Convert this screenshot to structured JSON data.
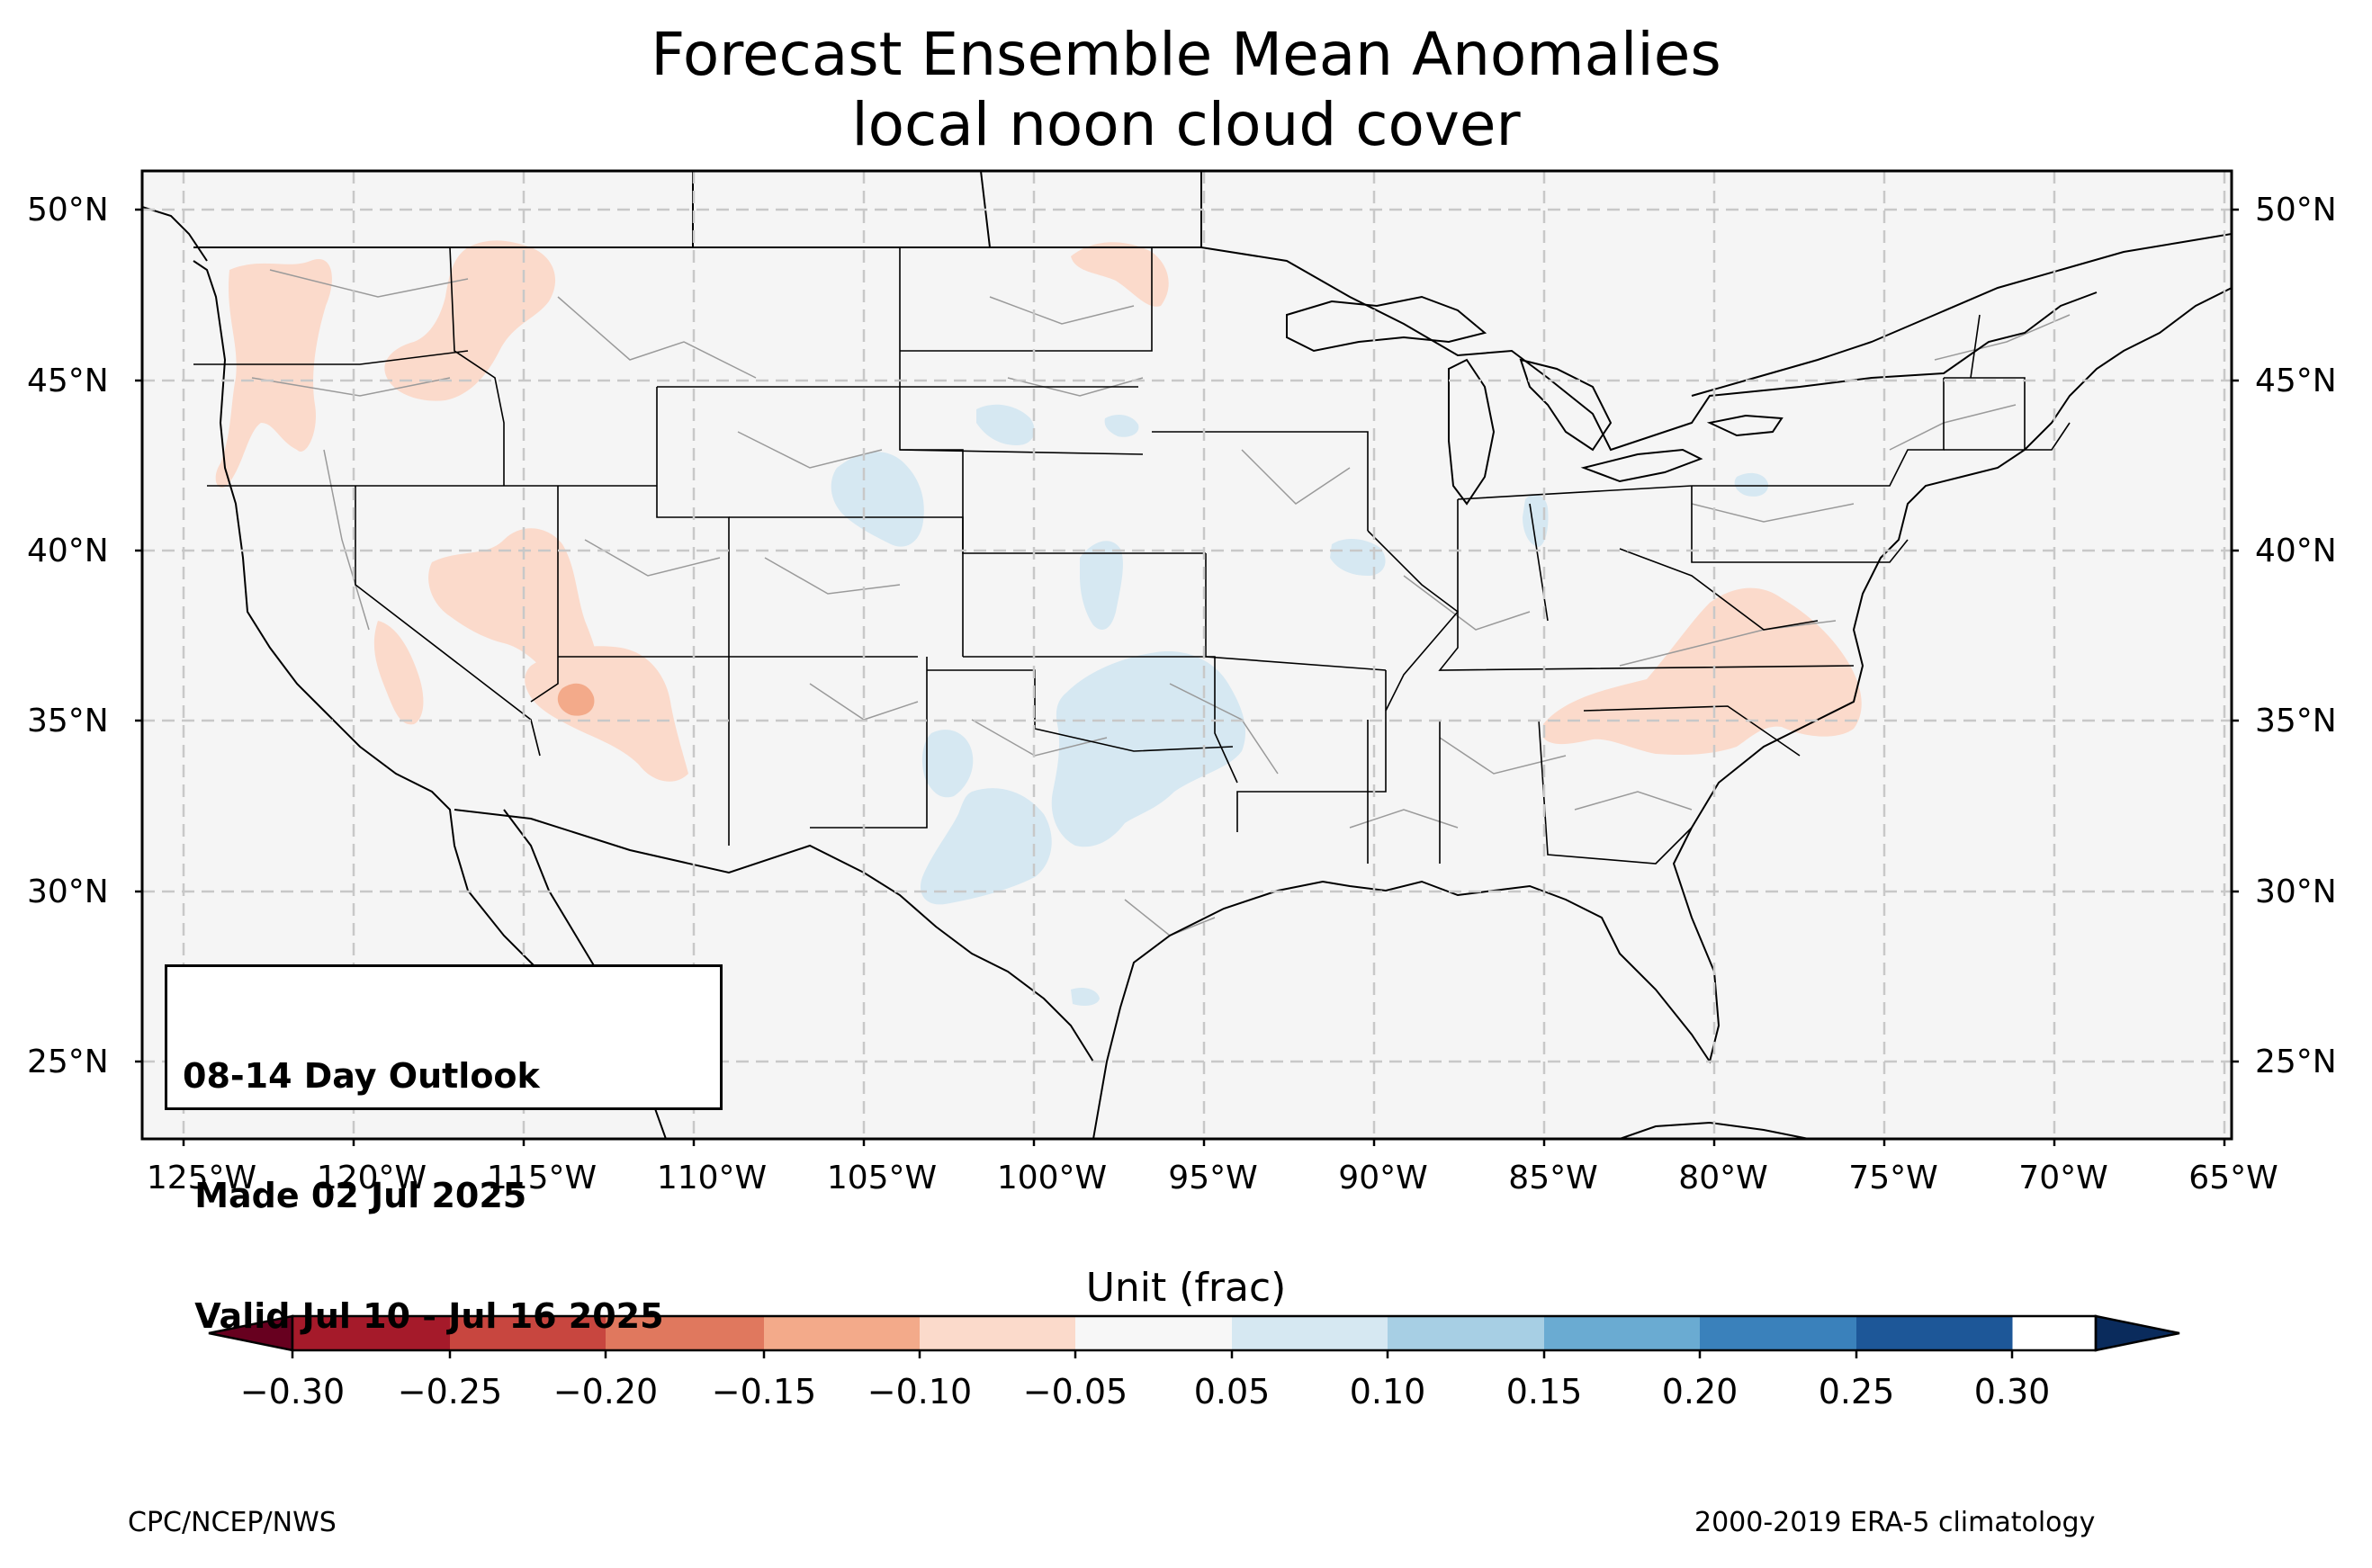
{
  "title": {
    "line1": "Forecast Ensemble Mean Anomalies",
    "line2": "local noon cloud cover"
  },
  "map": {
    "extent": {
      "lon_min": -126.3,
      "lon_max": -64.8,
      "lat_min": 22.8,
      "lat_max": 51.2
    },
    "lat_ticks": [
      "50°N",
      "45°N",
      "40°N",
      "35°N",
      "30°N",
      "25°N"
    ],
    "lon_ticks": [
      "125°W",
      "120°W",
      "115°W",
      "110°W",
      "105°W",
      "100°W",
      "95°W",
      "90°W",
      "85°W",
      "80°W",
      "75°W",
      "70°W",
      "65°W"
    ],
    "grid": "dashed",
    "background_color": "#f5f5f5",
    "features": [
      "coastline",
      "country borders",
      "state borders",
      "county lines"
    ],
    "anomaly_regions": [
      {
        "name": "Pacific Northwest coast",
        "class": "-0.10 to -0.05"
      },
      {
        "name": "Idaho / Montana",
        "class": "-0.10 to -0.05"
      },
      {
        "name": "Nevada / Utah",
        "class": "-0.10 to -0.05"
      },
      {
        "name": "Central California",
        "class": "-0.10 to -0.05"
      },
      {
        "name": "Arizona",
        "class": "-0.10 to -0.05"
      },
      {
        "name": "Northern Arizona core",
        "class": "-0.15 to -0.10"
      },
      {
        "name": "North Dakota / Manitoba border",
        "class": "-0.10 to -0.05"
      },
      {
        "name": "Virginia / North Carolina / Tennessee",
        "class": "-0.10 to -0.05"
      },
      {
        "name": "Wyoming / Colorado border",
        "class": "0.05 to 0.10"
      },
      {
        "name": "South Dakota / Nebraska",
        "class": "0.05 to 0.10"
      },
      {
        "name": "Kansas",
        "class": "0.05 to 0.10"
      },
      {
        "name": "Oklahoma / Texas",
        "class": "0.05 to 0.10"
      },
      {
        "name": "New Mexico / West Texas",
        "class": "0.05 to 0.10"
      },
      {
        "name": "Illinois",
        "class": "0.05 to 0.10"
      },
      {
        "name": "Indiana",
        "class": "0.05 to 0.10"
      },
      {
        "name": "Pennsylvania",
        "class": "0.05 to 0.10"
      }
    ]
  },
  "info_box": {
    "line1": "08-14 Day Outlook",
    "line2": " Made 02 Jul 2025",
    "line3": " Valid Jul 10 - Jul 16 2025"
  },
  "colorbar": {
    "title": "Unit (frac)",
    "ticks": [
      "−0.30",
      "−0.25",
      "−0.20",
      "−0.15",
      "−0.10",
      "−0.05",
      "0.05",
      "0.10",
      "0.15",
      "0.20",
      "0.25",
      "0.30"
    ],
    "colors": [
      "#a51a2a",
      "#c8463f",
      "#e0785e",
      "#f3aa8a",
      "#fbdacb",
      "#f7f7f7",
      "#d6e8f2",
      "#a7cfe4",
      "#6aabd2",
      "#3a81bb",
      "#1d5798"
    ],
    "extend_low_color": "#67001f",
    "extend_high_color": "#0a2b5c"
  },
  "footer": {
    "left": "CPC/NCEP/NWS",
    "right": "2000-2019 ERA-5 climatology"
  }
}
